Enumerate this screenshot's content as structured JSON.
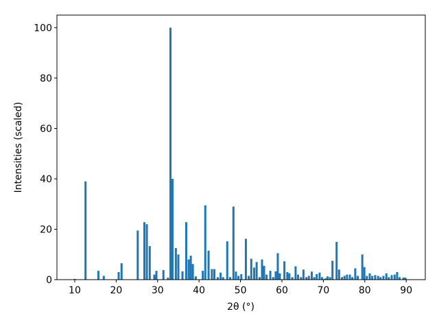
{
  "chart_data": {
    "type": "bar",
    "xlabel": "2θ (°)",
    "ylabel": "Intensities (scaled)",
    "color": "#1f77b4",
    "x": [
      10.0,
      12.6,
      15.7,
      17.0,
      20.6,
      21.3,
      25.2,
      26.8,
      27.4,
      28.1,
      29.2,
      29.7,
      31.4,
      32.5,
      33.1,
      33.6,
      34.4,
      35.0,
      36.0,
      36.9,
      37.5,
      38.0,
      38.5,
      39.2,
      40.9,
      41.5,
      42.3,
      43.1,
      43.7,
      44.5,
      45.2,
      45.8,
      46.8,
      47.5,
      48.3,
      48.9,
      49.5,
      50.2,
      51.3,
      52.0,
      52.6,
      53.3,
      53.9,
      54.6,
      55.2,
      55.7,
      56.3,
      57.2,
      57.9,
      58.5,
      59.0,
      59.5,
      60.6,
      61.3,
      61.8,
      62.5,
      63.3,
      63.9,
      64.6,
      65.2,
      65.9,
      66.5,
      67.2,
      67.8,
      68.4,
      69.1,
      69.7,
      70.5,
      71.0,
      71.6,
      72.2,
      73.2,
      73.8,
      74.5,
      75.1,
      75.7,
      76.4,
      77.0,
      77.7,
      78.3,
      79.4,
      79.9,
      80.5,
      81.2,
      81.8,
      82.5,
      83.2,
      83.8,
      84.5,
      85.2,
      85.8,
      86.5,
      87.2,
      87.8,
      88.4,
      89.3,
      89.8
    ],
    "values": [
      0.3,
      39,
      3.5,
      1.5,
      3,
      6.5,
      19.5,
      22.8,
      22,
      13.3,
      2,
      3.5,
      3.8,
      0.8,
      100,
      40,
      12.5,
      10,
      3.3,
      22.8,
      8,
      9.5,
      6.2,
      1.3,
      3.5,
      29.5,
      11.5,
      4.2,
      4.2,
      1,
      2.8,
      1,
      15.2,
      1,
      29,
      3.2,
      1.5,
      2.2,
      16.2,
      1.5,
      8.3,
      4.8,
      7,
      1,
      8,
      5.5,
      2,
      3.5,
      1,
      3.3,
      10.5,
      2.5,
      7.3,
      3,
      2.5,
      1,
      5.3,
      2,
      1,
      4,
      1,
      1.5,
      3.2,
      1,
      2.2,
      2.8,
      1,
      0.5,
      1.3,
      1,
      7.5,
      15,
      4,
      1,
      1.5,
      2,
      2,
      1,
      4.5,
      1.5,
      10,
      5,
      1.5,
      2.5,
      1.5,
      1.8,
      1.5,
      1,
      1.5,
      2.5,
      1,
      1.8,
      2,
      3,
      1,
      0.8,
      0.8
    ],
    "xlim": [
      5.7,
      94.6
    ],
    "ylim": [
      0,
      105
    ],
    "xticks": [
      10,
      20,
      30,
      40,
      50,
      60,
      70,
      80,
      90
    ],
    "yticks": [
      0,
      20,
      40,
      60,
      80,
      100
    ]
  }
}
